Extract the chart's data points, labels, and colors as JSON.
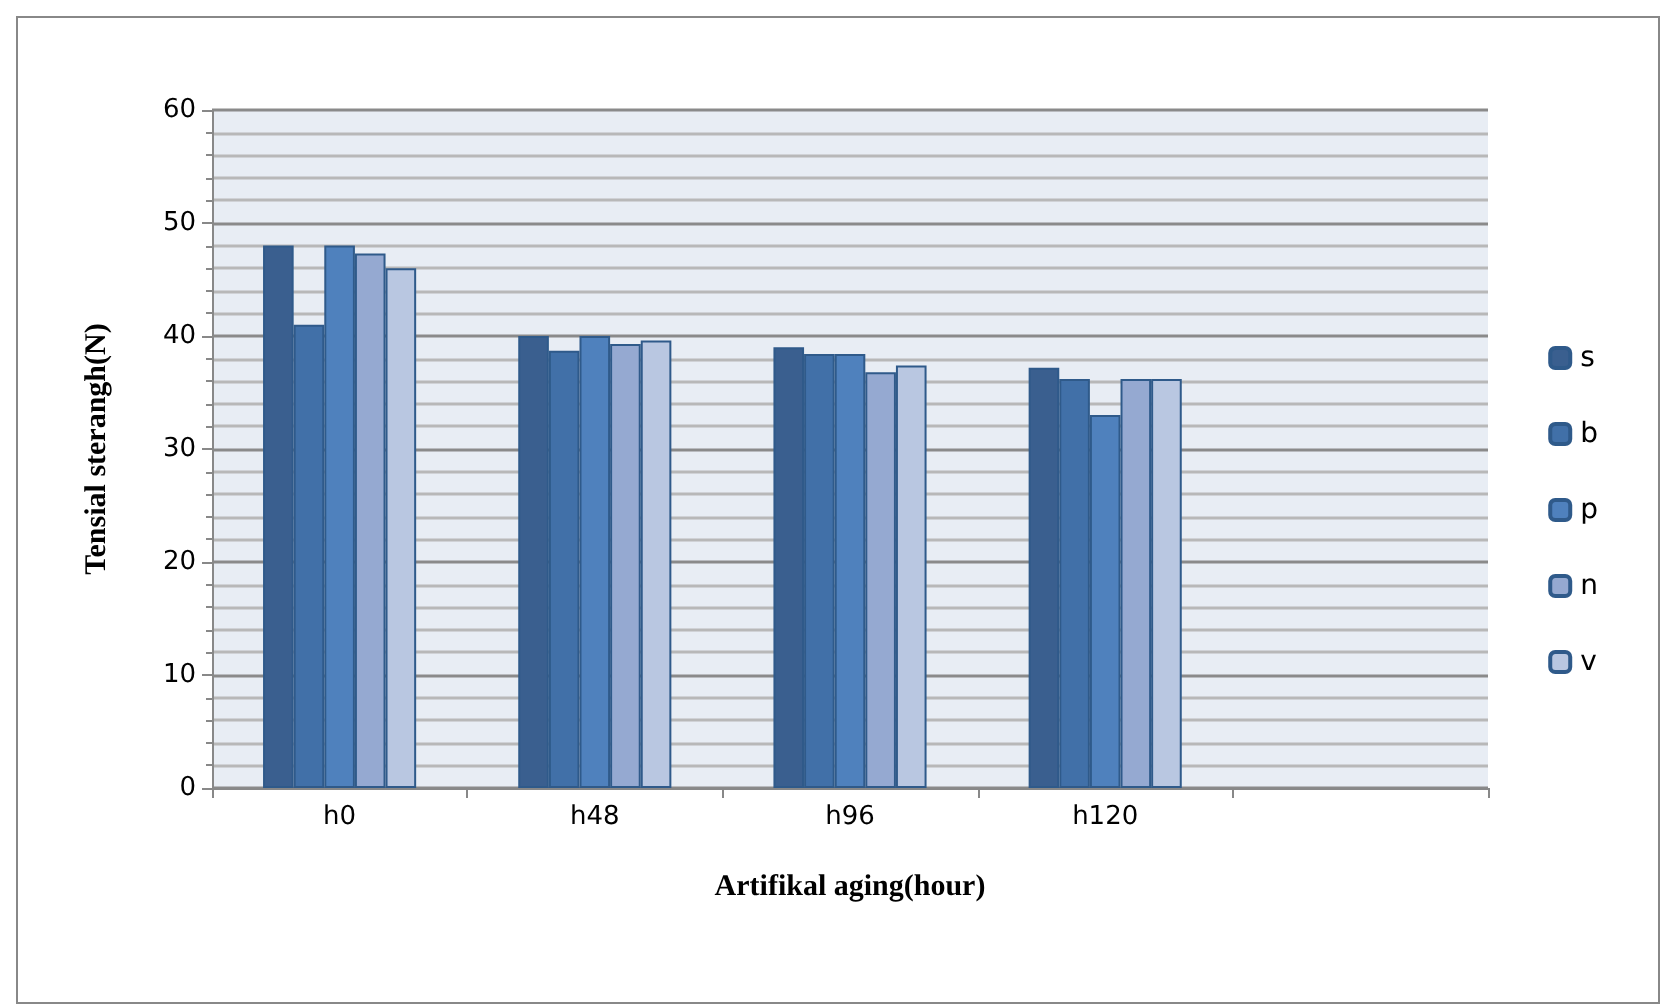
{
  "chart_data": {
    "type": "bar",
    "xlabel": "Artifikal aging(hour)",
    "ylabel": "Tensial sterangh(N)",
    "categories": [
      "h0",
      "h48",
      "h96",
      "h120",
      null
    ],
    "series": [
      {
        "name": "s",
        "color": "#3a5f8f",
        "values": [
          48,
          40,
          39,
          37.2,
          null
        ]
      },
      {
        "name": "b",
        "color": "#4170a8",
        "values": [
          41,
          38.7,
          38.4,
          36.2,
          null
        ]
      },
      {
        "name": "p",
        "color": "#4f81bd",
        "values": [
          48,
          40,
          38.4,
          33,
          null
        ]
      },
      {
        "name": "n",
        "color": "#95a9d1",
        "values": [
          47.3,
          39.3,
          36.8,
          36.2,
          null
        ]
      },
      {
        "name": "v",
        "color": "#b9c7e1",
        "values": [
          46,
          39.6,
          37.4,
          36.2,
          null
        ]
      }
    ],
    "ylim": [
      0,
      60
    ],
    "yticks": [
      0,
      10,
      20,
      30,
      40,
      50,
      60
    ],
    "grid": "y",
    "legend": "right"
  }
}
